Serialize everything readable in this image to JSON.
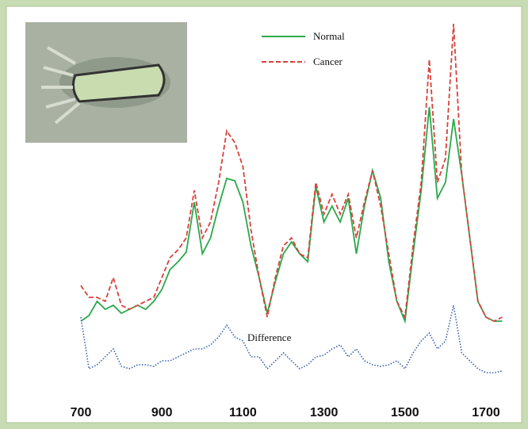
{
  "chart_data": {
    "type": "line",
    "x": [
      700,
      720,
      740,
      760,
      780,
      800,
      820,
      840,
      860,
      880,
      900,
      920,
      940,
      960,
      980,
      1000,
      1020,
      1040,
      1060,
      1080,
      1100,
      1120,
      1140,
      1160,
      1180,
      1200,
      1220,
      1240,
      1260,
      1280,
      1300,
      1320,
      1340,
      1360,
      1380,
      1400,
      1420,
      1440,
      1460,
      1480,
      1500,
      1520,
      1540,
      1560,
      1580,
      1600,
      1620,
      1640,
      1660,
      1680,
      1700,
      1720,
      1740
    ],
    "series": [
      {
        "name": "Normal",
        "color": "#2aa84a",
        "style": "solid",
        "values": [
          95,
          102,
          120,
          110,
          115,
          105,
          110,
          115,
          110,
          120,
          135,
          160,
          170,
          182,
          245,
          180,
          200,
          240,
          275,
          272,
          245,
          190,
          150,
          105,
          145,
          180,
          195,
          180,
          170,
          265,
          220,
          240,
          220,
          250,
          180,
          240,
          285,
          250,
          170,
          120,
          95,
          180,
          260,
          365,
          250,
          270,
          350,
          280,
          200,
          120,
          100,
          95,
          95
        ]
      },
      {
        "name": "Cancer",
        "color": "#d9413a",
        "style": "dashed",
        "values": [
          140,
          125,
          125,
          120,
          150,
          115,
          110,
          115,
          120,
          125,
          150,
          175,
          185,
          200,
          260,
          200,
          220,
          270,
          335,
          320,
          290,
          210,
          150,
          100,
          150,
          190,
          200,
          180,
          175,
          270,
          230,
          255,
          230,
          255,
          200,
          245,
          285,
          240,
          180,
          120,
          100,
          190,
          270,
          425,
          270,
          300,
          470,
          280,
          200,
          120,
          100,
          95,
          100
        ]
      },
      {
        "name": "Difference",
        "color": "#3a5fb0",
        "style": "dotted",
        "values": [
          100,
          35,
          40,
          50,
          60,
          38,
          35,
          40,
          40,
          38,
          45,
          45,
          50,
          55,
          60,
          60,
          65,
          75,
          90,
          75,
          70,
          50,
          50,
          35,
          45,
          55,
          45,
          35,
          40,
          50,
          52,
          60,
          65,
          50,
          60,
          45,
          40,
          38,
          40,
          45,
          35,
          55,
          70,
          80,
          60,
          70,
          115,
          55,
          45,
          35,
          30,
          30,
          32
        ]
      }
    ],
    "xlim": [
      680,
      1780
    ],
    "xticks": [
      700,
      900,
      1100,
      1300,
      1500,
      1700
    ],
    "ylim": [
      0,
      480
    ]
  }
}
